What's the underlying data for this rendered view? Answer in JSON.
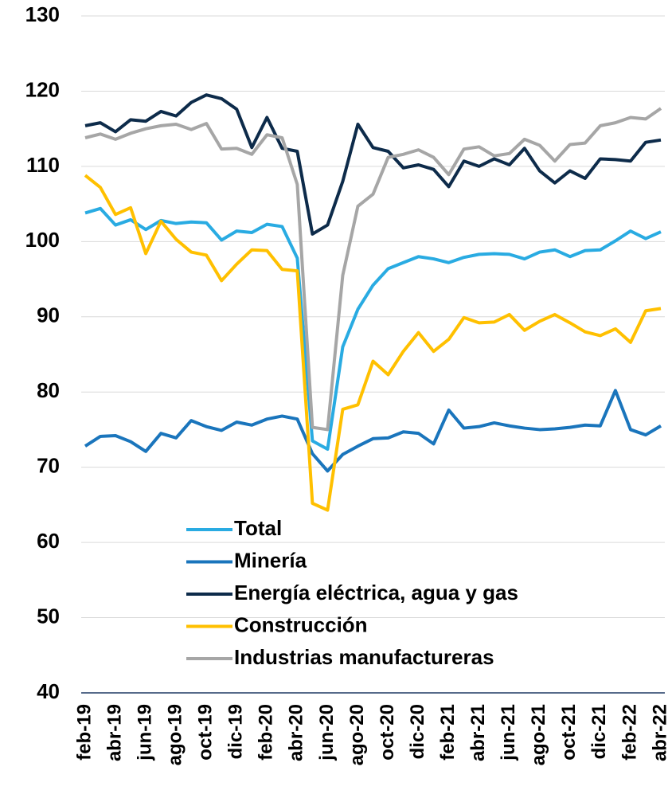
{
  "chart_data": {
    "type": "line",
    "categories": [
      "feb-19",
      null,
      "abr-19",
      null,
      "jun-19",
      null,
      "ago-19",
      null,
      "oct-19",
      null,
      "dic-19",
      null,
      "feb-20",
      null,
      "abr-20",
      null,
      "jun-20",
      null,
      "ago-20",
      null,
      "oct-20",
      null,
      "dic-20",
      null,
      "feb-21",
      null,
      "abr-21",
      null,
      "jun-21",
      null,
      "ago-21",
      null,
      "oct-21",
      null,
      "dic-21",
      null,
      "feb-22",
      null,
      "abr-22"
    ],
    "series": [
      {
        "name": "Total",
        "color": "#29abe2",
        "values": [
          103.8,
          104.4,
          102.2,
          102.9,
          101.6,
          102.8,
          102.4,
          102.6,
          102.5,
          100.2,
          101.4,
          101.2,
          102.3,
          102.0,
          97.8,
          73.5,
          72.4,
          86.0,
          91.0,
          94.2,
          96.4,
          97.2,
          98.0,
          97.7,
          97.2,
          97.9,
          98.3,
          98.4,
          98.3,
          97.7,
          98.6,
          98.9,
          98.0,
          98.8,
          98.9,
          100.1,
          101.4,
          100.4,
          101.3
        ]
      },
      {
        "name": "Minería",
        "color": "#1a75bc",
        "values": [
          72.8,
          74.1,
          74.2,
          73.4,
          72.1,
          74.5,
          73.9,
          76.2,
          75.4,
          74.9,
          76.0,
          75.6,
          76.4,
          76.8,
          76.4,
          71.8,
          69.5,
          71.7,
          72.8,
          73.8,
          73.9,
          74.7,
          74.5,
          73.1,
          77.6,
          75.2,
          75.4,
          75.9,
          75.5,
          75.2,
          75.0,
          75.1,
          75.3,
          75.6,
          75.5,
          80.2,
          75.0,
          74.3,
          75.5
        ]
      },
      {
        "name": "Energía eléctrica, agua y gas",
        "color": "#0d2b4a",
        "values": [
          115.4,
          115.8,
          114.6,
          116.2,
          116.0,
          117.3,
          116.7,
          118.5,
          119.5,
          119.0,
          117.6,
          112.5,
          116.5,
          112.4,
          112.0,
          101.0,
          102.2,
          108.0,
          115.6,
          112.5,
          112.0,
          109.8,
          110.2,
          109.6,
          107.3,
          110.7,
          110.0,
          111.0,
          110.2,
          112.4,
          109.4,
          107.8,
          109.4,
          108.4,
          111.0,
          110.9,
          110.7,
          113.2,
          113.5
        ]
      },
      {
        "name": "Construcción",
        "color": "#ffc000",
        "values": [
          108.8,
          107.2,
          103.6,
          104.5,
          98.4,
          102.7,
          100.3,
          98.6,
          98.2,
          94.8,
          97.0,
          98.9,
          98.8,
          96.3,
          96.1,
          65.2,
          64.3,
          77.7,
          78.3,
          84.1,
          82.3,
          85.4,
          87.9,
          85.4,
          87.0,
          89.9,
          89.2,
          89.3,
          90.3,
          88.2,
          89.4,
          90.3,
          89.2,
          88.0,
          87.5,
          88.4,
          86.6,
          90.8,
          91.1
        ]
      },
      {
        "name": "Industrias manufactureras",
        "color": "#a6a6a6",
        "values": [
          113.8,
          114.3,
          113.6,
          114.4,
          115.0,
          115.4,
          115.6,
          114.9,
          115.7,
          112.3,
          112.4,
          111.6,
          114.2,
          113.8,
          107.6,
          75.3,
          75.0,
          95.5,
          104.7,
          106.3,
          111.2,
          111.6,
          112.2,
          111.2,
          108.9,
          112.3,
          112.6,
          111.4,
          111.7,
          113.6,
          112.8,
          110.7,
          112.9,
          113.1,
          115.4,
          115.8,
          116.5,
          116.3,
          117.7
        ]
      }
    ],
    "ylim": [
      40,
      130
    ],
    "yticks": [
      40,
      50,
      60,
      70,
      80,
      90,
      100,
      110,
      120,
      130
    ],
    "grid": true
  }
}
